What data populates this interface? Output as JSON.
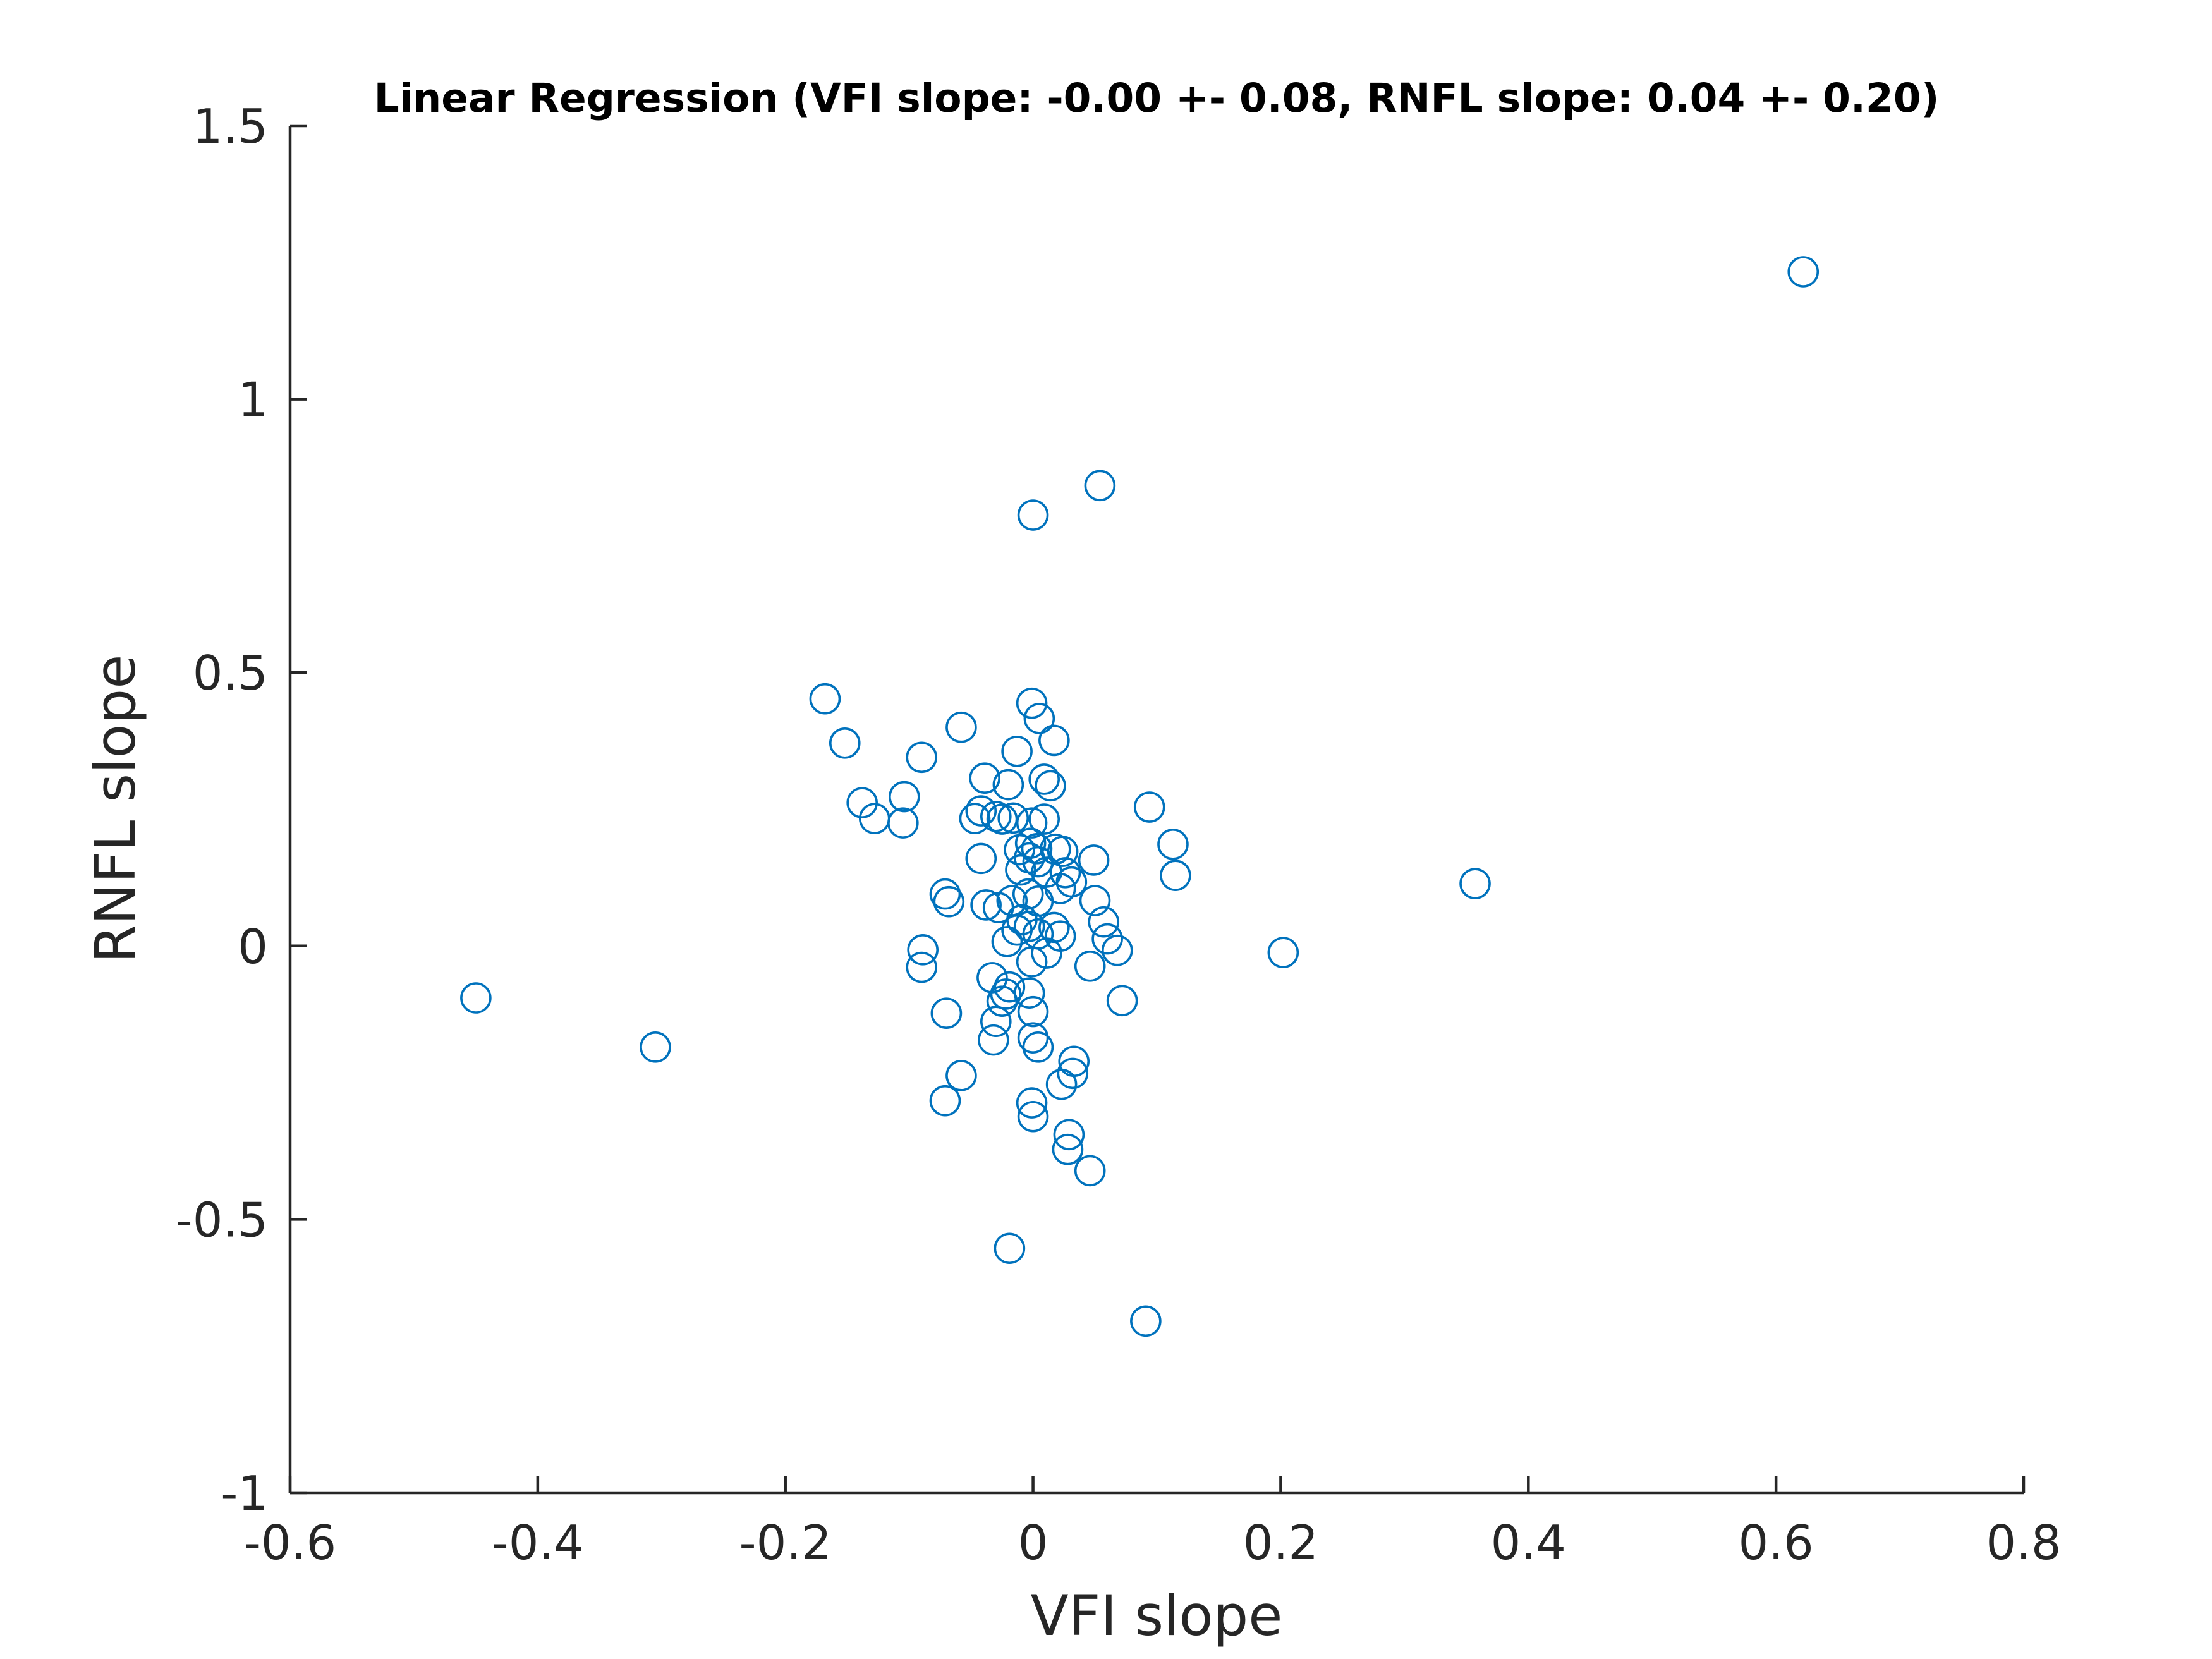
{
  "chart_data": {
    "type": "scatter",
    "title": "Linear Regression (VFI slope: -0.00 +- 0.08, RNFL slope: 0.04 +- 0.20)",
    "xlabel": "VFI slope",
    "ylabel": "RNFL slope",
    "xlim": [
      -0.6,
      0.8
    ],
    "ylim": [
      -1,
      1.5
    ],
    "xticks": [
      -0.6,
      -0.4,
      -0.2,
      0,
      0.2,
      0.4,
      0.6,
      0.8
    ],
    "yticks": [
      -1,
      -0.5,
      0,
      0.5,
      1,
      1.5
    ],
    "xtick_labels": [
      "-0.6",
      "-0.4",
      "-0.2",
      "0",
      "0.2",
      "0.4",
      "0.6",
      "0.8"
    ],
    "ytick_labels": [
      "-1",
      "-0.5",
      "0",
      "0.5",
      "1",
      "1.5"
    ],
    "grid": false,
    "legend": "none",
    "marker": "open-circle",
    "color": "#0072bd",
    "series": [
      {
        "points": [
          [
            0.622,
            1.233
          ],
          [
            0.054,
            0.842
          ],
          [
            0.0,
            0.788
          ],
          [
            -0.168,
            0.452
          ],
          [
            -0.152,
            0.371
          ],
          [
            -0.138,
            0.262
          ],
          [
            -0.128,
            0.233
          ],
          [
            -0.104,
            0.273
          ],
          [
            -0.105,
            0.225
          ],
          [
            -0.09,
            0.345
          ],
          [
            -0.058,
            0.4
          ],
          [
            -0.001,
            0.444
          ],
          [
            0.005,
            0.416
          ],
          [
            0.017,
            0.376
          ],
          [
            -0.013,
            0.356
          ],
          [
            0.009,
            0.305
          ],
          [
            0.014,
            0.293
          ],
          [
            -0.039,
            0.307
          ],
          [
            -0.02,
            0.295
          ],
          [
            -0.042,
            0.247
          ],
          [
            -0.047,
            0.233
          ],
          [
            -0.03,
            0.237
          ],
          [
            -0.016,
            0.234
          ],
          [
            -0.025,
            0.232
          ],
          [
            -0.001,
            0.225
          ],
          [
            0.009,
            0.232
          ],
          [
            0.094,
            0.254
          ],
          [
            0.113,
            0.186
          ],
          [
            0.115,
            0.129
          ],
          [
            0.357,
            0.114
          ],
          [
            -0.002,
            0.188
          ],
          [
            0.003,
            0.178
          ],
          [
            -0.011,
            0.176
          ],
          [
            0.018,
            0.177
          ],
          [
            0.024,
            0.173
          ],
          [
            0.049,
            0.157
          ],
          [
            -0.003,
            0.161
          ],
          [
            0.004,
            0.154
          ],
          [
            -0.042,
            0.16
          ],
          [
            -0.01,
            0.139
          ],
          [
            0.011,
            0.135
          ],
          [
            0.026,
            0.134
          ],
          [
            0.031,
            0.117
          ],
          [
            0.022,
            0.105
          ],
          [
            -0.071,
            0.095
          ],
          [
            -0.068,
            0.081
          ],
          [
            -0.038,
            0.075
          ],
          [
            -0.028,
            0.07
          ],
          [
            -0.017,
            0.083
          ],
          [
            -0.004,
            0.095
          ],
          [
            0.004,
            0.082
          ],
          [
            0.05,
            0.083
          ],
          [
            0.057,
            0.044
          ],
          [
            -0.009,
            0.048
          ],
          [
            -0.003,
            0.036
          ],
          [
            0.004,
            0.022
          ],
          [
            0.017,
            0.034
          ],
          [
            0.022,
            0.018
          ],
          [
            -0.013,
            0.029
          ],
          [
            -0.021,
            0.008
          ],
          [
            0.06,
            0.013
          ],
          [
            0.068,
            -0.008
          ],
          [
            0.011,
            -0.013
          ],
          [
            -0.001,
            -0.029
          ],
          [
            -0.089,
            -0.007
          ],
          [
            -0.09,
            -0.039
          ],
          [
            0.046,
            -0.037
          ],
          [
            0.202,
            -0.012
          ],
          [
            -0.45,
            -0.095
          ],
          [
            -0.305,
            -0.185
          ],
          [
            -0.033,
            -0.058
          ],
          [
            -0.019,
            -0.075
          ],
          [
            -0.022,
            -0.088
          ],
          [
            -0.025,
            -0.101
          ],
          [
            -0.003,
            -0.086
          ],
          [
            0.072,
            -0.1
          ],
          [
            -0.07,
            -0.123
          ],
          [
            0.0,
            -0.12
          ],
          [
            -0.03,
            -0.138
          ],
          [
            -0.032,
            -0.172
          ],
          [
            0.0,
            -0.168
          ],
          [
            0.004,
            -0.185
          ],
          [
            0.033,
            -0.211
          ],
          [
            0.032,
            -0.233
          ],
          [
            0.023,
            -0.253
          ],
          [
            -0.058,
            -0.237
          ],
          [
            -0.071,
            -0.283
          ],
          [
            -0.001,
            -0.287
          ],
          [
            0.0,
            -0.312
          ],
          [
            0.029,
            -0.345
          ],
          [
            0.028,
            -0.372
          ],
          [
            0.046,
            -0.411
          ],
          [
            -0.019,
            -0.553
          ],
          [
            0.091,
            -0.686
          ]
        ]
      }
    ]
  }
}
